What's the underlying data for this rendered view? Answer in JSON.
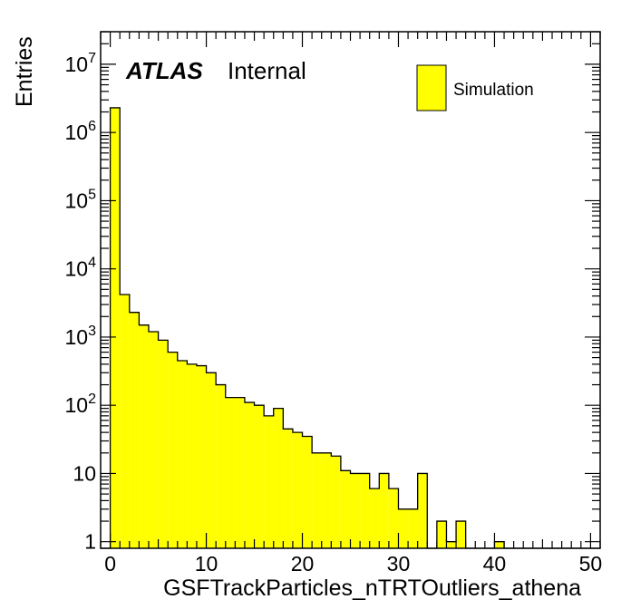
{
  "chart_data": {
    "type": "histogram",
    "xlabel": "GSFTrackParticles_nTRTOutliers_athena",
    "ylabel": "Entries",
    "xlim": [
      -1,
      51
    ],
    "ylim": [
      0.8,
      30000000
    ],
    "log_y": true,
    "bin_width": 1,
    "bin_low_edges": [
      -1,
      0,
      1,
      2,
      3,
      4,
      5,
      6,
      7,
      8,
      9,
      10,
      11,
      12,
      13,
      14,
      15,
      16,
      17,
      18,
      19,
      20,
      21,
      22,
      23,
      24,
      25,
      26,
      27,
      28,
      29,
      30,
      31,
      32,
      33,
      34,
      35,
      36,
      37,
      38,
      39,
      40,
      41,
      42,
      43,
      44,
      45,
      46,
      47,
      48,
      49,
      50
    ],
    "values": [
      0,
      2300000,
      4200,
      2300,
      1500,
      1200,
      900,
      600,
      450,
      400,
      380,
      300,
      200,
      130,
      130,
      110,
      100,
      70,
      90,
      45,
      40,
      35,
      20,
      20,
      18,
      11,
      10,
      10,
      6,
      10,
      6,
      3,
      3,
      10,
      0.5,
      2,
      1,
      2,
      0.5,
      0.5,
      0.5,
      1,
      0.5,
      0.5,
      0.5,
      0.5,
      0.5,
      0.5,
      0.5,
      0.5,
      0.5,
      0.5
    ],
    "x_tick_labels": [
      "0",
      "10",
      "20",
      "30",
      "40",
      "50"
    ],
    "x_tick_values": [
      0,
      10,
      20,
      30,
      40,
      50
    ],
    "y_tick_values": [
      1,
      10,
      100,
      1000,
      10000,
      100000,
      1000000,
      10000000
    ],
    "y_tick_labels": [
      {
        "base": "1",
        "exp": ""
      },
      {
        "base": "10",
        "exp": ""
      },
      {
        "base": "10",
        "exp": "2"
      },
      {
        "base": "10",
        "exp": "3"
      },
      {
        "base": "10",
        "exp": "4"
      },
      {
        "base": "10",
        "exp": "5"
      },
      {
        "base": "10",
        "exp": "6"
      },
      {
        "base": "10",
        "exp": "7"
      }
    ],
    "fill_color": "#ffff00",
    "line_color": "#000000",
    "legend": {
      "placement": "top-right",
      "entries": [
        "Simulation"
      ]
    },
    "grid": false
  },
  "atlas_label": {
    "bold": "ATLAS",
    "text": "Internal"
  }
}
